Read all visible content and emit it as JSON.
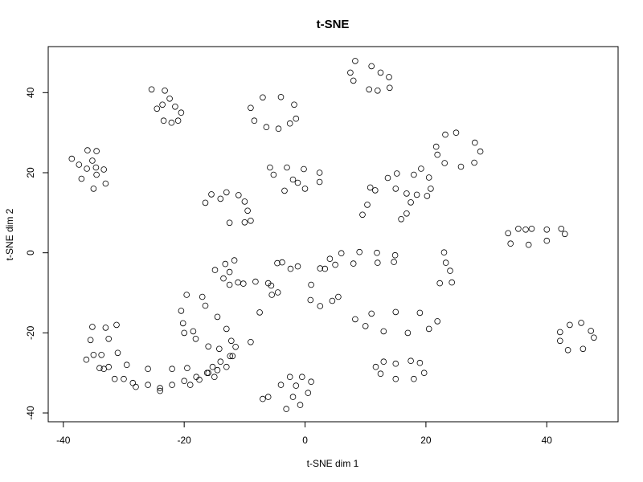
{
  "chart_data": {
    "type": "scatter",
    "title": "t-SNE",
    "xlabel": "t-SNE dim 1",
    "ylabel": "t-SNE dim 2",
    "xlim": [
      -42.5,
      51.8
    ],
    "ylim": [
      -42.2,
      51.5
    ],
    "xticks": [
      -40,
      -20,
      0,
      20,
      40
    ],
    "yticks": [
      -40,
      -20,
      0,
      20,
      40
    ],
    "xtick_labels": [
      "-40",
      "-20",
      "0",
      "20",
      "40"
    ],
    "ytick_labels": [
      "-40",
      "-20",
      "0",
      "20",
      "40"
    ],
    "grid": false,
    "marker": "open-circle",
    "marker_color": "#000000",
    "series": [
      {
        "values": [
          [
            -36.0,
            25.6
          ],
          [
            -34.5,
            25.4
          ],
          [
            -35.2,
            23.0
          ],
          [
            -38.6,
            23.5
          ],
          [
            -37.4,
            22.0
          ],
          [
            -36.1,
            21.0
          ],
          [
            -34.6,
            21.3
          ],
          [
            -34.5,
            19.5
          ],
          [
            -33.3,
            20.8
          ],
          [
            -33.0,
            17.3
          ],
          [
            -35.0,
            16.0
          ],
          [
            -37.0,
            18.5
          ],
          [
            -25.4,
            40.8
          ],
          [
            -23.2,
            40.5
          ],
          [
            -23.6,
            37.0
          ],
          [
            -23.4,
            33.0
          ],
          [
            -21.0,
            33.0
          ],
          [
            -21.5,
            36.5
          ],
          [
            -22.4,
            38.5
          ],
          [
            -24.5,
            36.0
          ],
          [
            -22.1,
            32.5
          ],
          [
            -20.5,
            35.0
          ],
          [
            -7.0,
            38.8
          ],
          [
            -4.0,
            38.9
          ],
          [
            -1.8,
            37.0
          ],
          [
            -1.5,
            33.5
          ],
          [
            -4.4,
            31.0
          ],
          [
            -8.4,
            33.0
          ],
          [
            -9.0,
            36.2
          ],
          [
            -6.4,
            31.4
          ],
          [
            -2.5,
            32.3
          ],
          [
            8.3,
            47.9
          ],
          [
            11.0,
            46.6
          ],
          [
            12.5,
            45.0
          ],
          [
            13.9,
            43.9
          ],
          [
            14.0,
            41.2
          ],
          [
            10.6,
            40.8
          ],
          [
            8.0,
            43.0
          ],
          [
            7.5,
            45.0
          ],
          [
            12.0,
            40.5
          ],
          [
            -15.5,
            14.6
          ],
          [
            -13.0,
            15.1
          ],
          [
            -11.0,
            14.4
          ],
          [
            -10.0,
            12.8
          ],
          [
            -9.5,
            10.5
          ],
          [
            -10.0,
            7.6
          ],
          [
            -12.5,
            7.5
          ],
          [
            -16.5,
            12.5
          ],
          [
            -14.0,
            13.5
          ],
          [
            -9.0,
            8.0
          ],
          [
            -5.8,
            21.3
          ],
          [
            -3.0,
            21.3
          ],
          [
            -0.2,
            20.9
          ],
          [
            2.4,
            20.0
          ],
          [
            2.4,
            17.7
          ],
          [
            0.0,
            16.0
          ],
          [
            -3.4,
            15.5
          ],
          [
            -1.2,
            17.5
          ],
          [
            -5.2,
            19.5
          ],
          [
            -2.0,
            18.3
          ],
          [
            21.7,
            26.5
          ],
          [
            23.2,
            29.5
          ],
          [
            25.0,
            30.0
          ],
          [
            28.1,
            27.5
          ],
          [
            29.0,
            25.3
          ],
          [
            28.0,
            22.5
          ],
          [
            25.8,
            21.5
          ],
          [
            23.1,
            22.4
          ],
          [
            21.9,
            24.5
          ],
          [
            9.5,
            9.5
          ],
          [
            10.3,
            12.0
          ],
          [
            10.8,
            16.3
          ],
          [
            11.6,
            15.6
          ],
          [
            13.7,
            18.7
          ],
          [
            15.2,
            19.8
          ],
          [
            18.0,
            19.5
          ],
          [
            19.2,
            21.0
          ],
          [
            20.5,
            18.8
          ],
          [
            20.8,
            16.0
          ],
          [
            20.2,
            14.2
          ],
          [
            18.5,
            14.5
          ],
          [
            16.8,
            14.8
          ],
          [
            15.0,
            16.0
          ],
          [
            17.5,
            12.6
          ],
          [
            16.8,
            9.8
          ],
          [
            15.9,
            8.4
          ],
          [
            33.6,
            4.9
          ],
          [
            35.3,
            6.0
          ],
          [
            37.5,
            6.0
          ],
          [
            40.0,
            5.8
          ],
          [
            42.4,
            6.0
          ],
          [
            43.0,
            4.7
          ],
          [
            40.0,
            3.0
          ],
          [
            37.0,
            2.0
          ],
          [
            34.0,
            2.3
          ],
          [
            36.5,
            5.8
          ],
          [
            42.2,
            -19.8
          ],
          [
            43.8,
            -18.0
          ],
          [
            45.7,
            -17.5
          ],
          [
            47.3,
            -19.5
          ],
          [
            47.8,
            -21.2
          ],
          [
            46.0,
            -24.0
          ],
          [
            43.5,
            -24.3
          ],
          [
            42.2,
            -22.0
          ],
          [
            2.5,
            -3.9
          ],
          [
            4.1,
            -1.5
          ],
          [
            6.0,
            -0.1
          ],
          [
            9.0,
            0.2
          ],
          [
            11.9,
            0.0
          ],
          [
            14.9,
            -0.6
          ],
          [
            14.7,
            -2.3
          ],
          [
            12.0,
            -2.5
          ],
          [
            8.0,
            -2.7
          ],
          [
            5.0,
            -3.0
          ],
          [
            3.3,
            -4.0
          ],
          [
            1.0,
            -8.0
          ],
          [
            0.9,
            -11.8
          ],
          [
            2.5,
            -13.3
          ],
          [
            4.5,
            -12.0
          ],
          [
            5.5,
            -11.0
          ],
          [
            8.3,
            -16.6
          ],
          [
            11.0,
            -15.2
          ],
          [
            15.0,
            -14.8
          ],
          [
            19.0,
            -15.0
          ],
          [
            21.9,
            -17.1
          ],
          [
            20.5,
            -19.0
          ],
          [
            17.0,
            -20.0
          ],
          [
            13.0,
            -19.6
          ],
          [
            10.0,
            -18.3
          ],
          [
            11.7,
            -28.5
          ],
          [
            13.0,
            -27.2
          ],
          [
            15.0,
            -27.7
          ],
          [
            17.5,
            -27.0
          ],
          [
            19.0,
            -27.5
          ],
          [
            19.7,
            -30.0
          ],
          [
            18.0,
            -31.5
          ],
          [
            15.0,
            -31.5
          ],
          [
            12.5,
            -30.2
          ],
          [
            23.0,
            0.1
          ],
          [
            23.3,
            -2.5
          ],
          [
            24.0,
            -4.5
          ],
          [
            24.3,
            -7.4
          ],
          [
            22.3,
            -7.6
          ],
          [
            -4.6,
            -2.6
          ],
          [
            -3.8,
            -2.4
          ],
          [
            -2.4,
            -4.0
          ],
          [
            -1.2,
            -3.4
          ],
          [
            -5.5,
            -10.5
          ],
          [
            -4.5,
            -9.9
          ],
          [
            -6.1,
            -7.6
          ],
          [
            -5.6,
            -8.2
          ],
          [
            -8.2,
            -7.2
          ],
          [
            -7.5,
            -14.9
          ],
          [
            -11.1,
            -7.4
          ],
          [
            -10.2,
            -7.7
          ],
          [
            -12.5,
            -8.0
          ],
          [
            -13.5,
            -6.4
          ],
          [
            -14.9,
            -4.3
          ],
          [
            -12.5,
            -4.8
          ],
          [
            -13.2,
            -2.8
          ],
          [
            -11.7,
            -1.9
          ],
          [
            -17.0,
            -11.0
          ],
          [
            -16.5,
            -13.2
          ],
          [
            -14.5,
            -16.0
          ],
          [
            -13.0,
            -19.0
          ],
          [
            -12.2,
            -22.0
          ],
          [
            -11.5,
            -23.5
          ],
          [
            -12.4,
            -25.8
          ],
          [
            -14.0,
            -27.2
          ],
          [
            -15.3,
            -28.5
          ],
          [
            -16.2,
            -30.0
          ],
          [
            -17.5,
            -31.7
          ],
          [
            -19.6,
            -10.5
          ],
          [
            -20.5,
            -14.5
          ],
          [
            -20.2,
            -17.6
          ],
          [
            -18.1,
            -21.5
          ],
          [
            -16.0,
            -23.4
          ],
          [
            -14.2,
            -24.0
          ],
          [
            -12.0,
            -25.8
          ],
          [
            -9.0,
            -22.3
          ],
          [
            -20.0,
            -20.0
          ],
          [
            -18.5,
            -19.6
          ],
          [
            -35.2,
            -18.5
          ],
          [
            -35.5,
            -21.8
          ],
          [
            -35.0,
            -25.5
          ],
          [
            -33.3,
            -29.0
          ],
          [
            -30.0,
            -31.5
          ],
          [
            -26.0,
            -33.0
          ],
          [
            -22.0,
            -33.0
          ],
          [
            -18.0,
            -31.0
          ],
          [
            -14.5,
            -29.3
          ],
          [
            -31.2,
            -18.0
          ],
          [
            -32.5,
            -21.5
          ],
          [
            -31.0,
            -25.0
          ],
          [
            -29.5,
            -28.0
          ],
          [
            -26.0,
            -29.0
          ],
          [
            -22.0,
            -29.0
          ],
          [
            -19.5,
            -28.8
          ],
          [
            -33.0,
            -18.7
          ],
          [
            -33.7,
            -25.5
          ],
          [
            -32.5,
            -28.5
          ],
          [
            -28.5,
            -32.5
          ],
          [
            -24.0,
            -33.8
          ],
          [
            -20.0,
            -32.0
          ],
          [
            -16.0,
            -30.0
          ],
          [
            -13.0,
            -28.5
          ],
          [
            -36.2,
            -26.7
          ],
          [
            -34.0,
            -28.8
          ],
          [
            -31.5,
            -31.5
          ],
          [
            -28.0,
            -33.5
          ],
          [
            -24.0,
            -34.5
          ],
          [
            -19.0,
            -33.0
          ],
          [
            -15.0,
            -31.0
          ],
          [
            -7.0,
            -36.5
          ],
          [
            -6.1,
            -36.0
          ],
          [
            -4.0,
            -33.0
          ],
          [
            -2.5,
            -31.0
          ],
          [
            -0.5,
            -31.0
          ],
          [
            1.0,
            -32.2
          ],
          [
            0.5,
            -35.0
          ],
          [
            -0.8,
            -38.0
          ],
          [
            -3.1,
            -39.0
          ],
          [
            -2.0,
            -36.0
          ],
          [
            -1.5,
            -33.2
          ]
        ]
      }
    ]
  }
}
